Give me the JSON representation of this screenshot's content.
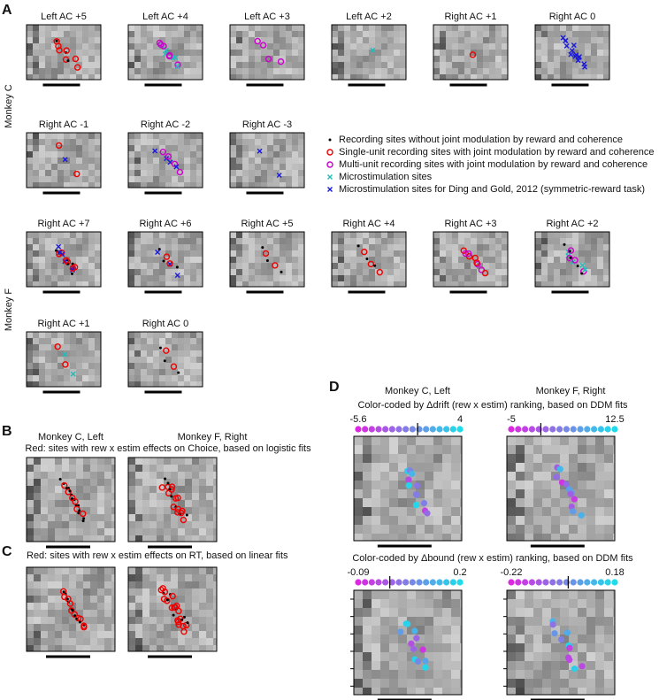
{
  "panel_a": {
    "letter": "A",
    "groups": [
      "Monkey C",
      "Monkey F"
    ],
    "slices": [
      "Left AC +5",
      "Left AC +4",
      "Left AC +3",
      "Left AC +2",
      "Right AC +1",
      "Right AC 0",
      "Right AC -1",
      "Right AC -2",
      "Right AC -3",
      "Right AC +7",
      "Right AC +6",
      "Right AC +5",
      "Right AC +4",
      "Right AC +3",
      "Right AC +2",
      "Right AC +1",
      "Right AC 0"
    ],
    "legend": [
      "Recording sites without joint modulation by reward and coherence",
      "Single-unit recording sites with joint modulation by reward and coherence",
      "Multi-unit recording sites with joint modulation by reward and coherence",
      "Microstimulation sites",
      "Microstimulation sites for Ding and Gold, 2012 (symmetric-reward task)"
    ]
  },
  "panel_b": {
    "letter": "B",
    "titles": [
      "Monkey C, Left",
      "Monkey F, Right"
    ],
    "caption": "Red: sites with rew x estim effects on Choice, based on logistic fits"
  },
  "panel_c": {
    "letter": "C",
    "caption": "Red: sites with rew x estim effects on RT, based on linear fits"
  },
  "panel_d": {
    "letter": "D",
    "titles": [
      "Monkey C, Left",
      "Monkey F, Right"
    ],
    "captions": [
      "Color-coded by Δdrift (rew x estim) ranking, based on DDM fits",
      "Color-coded by Δbound (rew x estim) ranking, based on DDM fits"
    ],
    "colorbars": [
      {
        "min": -5.6,
        "max": 4
      },
      {
        "min": -5,
        "max": 12.5
      },
      {
        "min": -0.09,
        "max": 0.2
      },
      {
        "min": -0.22,
        "max": 0.18
      }
    ]
  }
}
